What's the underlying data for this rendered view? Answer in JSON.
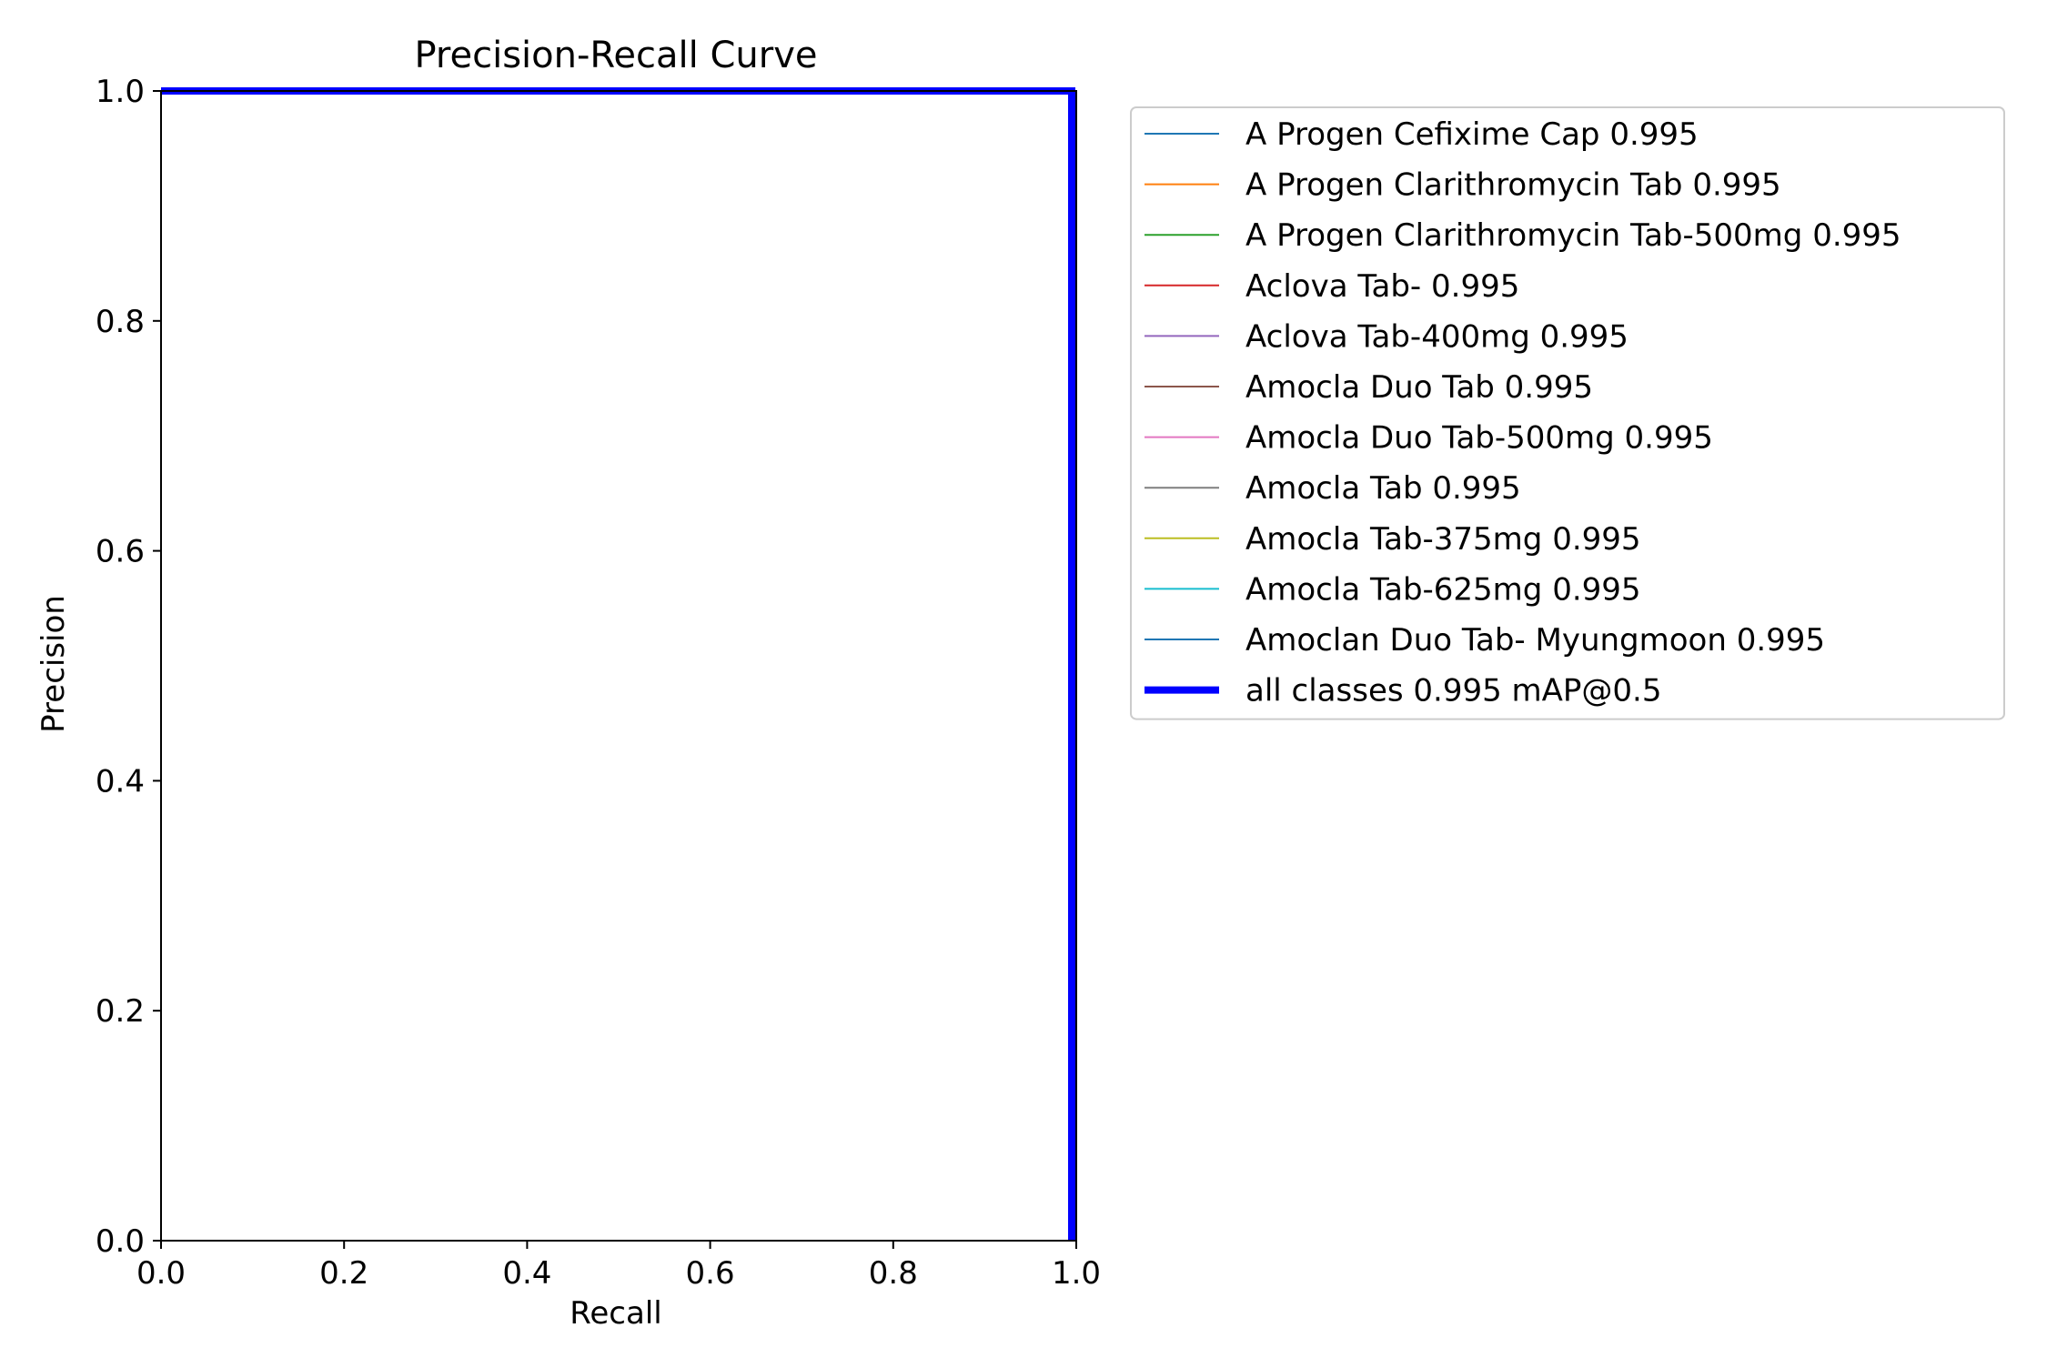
{
  "chart_data": {
    "type": "line",
    "title": "Precision-Recall Curve",
    "xlabel": "Recall",
    "ylabel": "Precision",
    "xlim": [
      0.0,
      1.0
    ],
    "ylim": [
      0.0,
      1.0
    ],
    "xticks": [
      "0.0",
      "0.2",
      "0.4",
      "0.6",
      "0.8",
      "1.0"
    ],
    "yticks": [
      "0.0",
      "0.2",
      "0.4",
      "0.6",
      "0.8",
      "1.0"
    ],
    "grid": false,
    "legend_position": "outside-right-top",
    "series": [
      {
        "name": "A Progen Cefixime Cap 0.995",
        "color": "#1f77b4",
        "x": [
          0.0,
          1.0,
          1.0
        ],
        "y": [
          1.0,
          1.0,
          0.0
        ]
      },
      {
        "name": "A Progen Clarithromycin Tab 0.995",
        "color": "#ff7f0e",
        "x": [
          0.0,
          1.0,
          1.0
        ],
        "y": [
          1.0,
          1.0,
          0.0
        ]
      },
      {
        "name": "A Progen Clarithromycin Tab-500mg 0.995",
        "color": "#2ca02c",
        "x": [
          0.0,
          1.0,
          1.0
        ],
        "y": [
          1.0,
          1.0,
          0.0
        ]
      },
      {
        "name": "Aclova Tab- 0.995",
        "color": "#d62728",
        "x": [
          0.0,
          1.0,
          1.0
        ],
        "y": [
          1.0,
          1.0,
          0.0
        ]
      },
      {
        "name": "Aclova Tab-400mg 0.995",
        "color": "#9467bd",
        "x": [
          0.0,
          1.0,
          1.0
        ],
        "y": [
          1.0,
          1.0,
          0.0
        ]
      },
      {
        "name": "Amocla Duo Tab 0.995",
        "color": "#8c564b",
        "x": [
          0.0,
          1.0,
          1.0
        ],
        "y": [
          1.0,
          1.0,
          0.0
        ]
      },
      {
        "name": "Amocla Duo Tab-500mg 0.995",
        "color": "#e377c2",
        "x": [
          0.0,
          1.0,
          1.0
        ],
        "y": [
          1.0,
          1.0,
          0.0
        ]
      },
      {
        "name": "Amocla Tab 0.995",
        "color": "#7f7f7f",
        "x": [
          0.0,
          1.0,
          1.0
        ],
        "y": [
          1.0,
          1.0,
          0.0
        ]
      },
      {
        "name": "Amocla Tab-375mg 0.995",
        "color": "#bcbd22",
        "x": [
          0.0,
          1.0,
          1.0
        ],
        "y": [
          1.0,
          1.0,
          0.0
        ]
      },
      {
        "name": "Amocla Tab-625mg 0.995",
        "color": "#17becf",
        "x": [
          0.0,
          1.0,
          1.0
        ],
        "y": [
          1.0,
          1.0,
          0.0
        ]
      },
      {
        "name": "Amoclan Duo Tab- Myungmoon 0.995",
        "color": "#1f77b4",
        "x": [
          0.0,
          1.0,
          1.0
        ],
        "y": [
          1.0,
          1.0,
          0.0
        ]
      },
      {
        "name": "all classes 0.995 mAP@0.5",
        "color": "#0000ff",
        "bold": true,
        "x": [
          0.0,
          0.995,
          0.995
        ],
        "y": [
          1.0,
          1.0,
          0.0
        ]
      }
    ]
  }
}
